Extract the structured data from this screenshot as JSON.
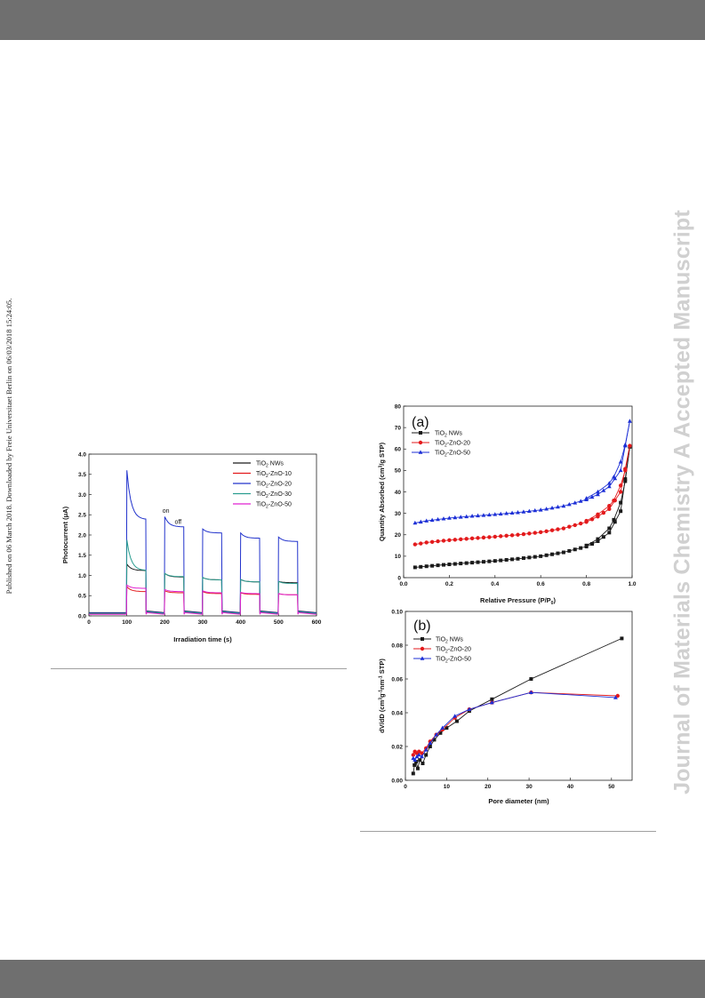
{
  "page": {
    "left_margin_note": "Published on 06 March 2018. Downloaded by Freie Universitaet Berlin on 06/03/2018 15:24:05.",
    "right_margin_watermark": "Journal of Materials Chemistry A Accepted Manuscript",
    "colors": {
      "header_bar": "#6f6f6f",
      "watermark": "#d0d0d0"
    }
  },
  "chart_data": [
    {
      "type": "line",
      "xlabel": "Irradiation time (s)",
      "ylabel": "Photocurrent (μA)",
      "xlim": [
        0,
        600
      ],
      "ylim": [
        0,
        4.0
      ],
      "xticks": [
        "0",
        "100",
        "200",
        "300",
        "400",
        "500",
        "600"
      ],
      "yticks": [
        "0.0",
        "0.5",
        "1.0",
        "1.5",
        "2.0",
        "2.5",
        "3.0",
        "3.5",
        "4.0"
      ],
      "annotations": [
        "on",
        "off"
      ],
      "legend_position": "top-right",
      "grid": false,
      "series": [
        {
          "name": "TiO2 NWs",
          "label_main": "TiO",
          "label_sub": "2",
          "label_tail": " NWs",
          "color": "#1a1a1a",
          "base": 0.08,
          "peaks": [
            1.28,
            1.05,
            0.95,
            0.9,
            0.85
          ],
          "plateaus": [
            1.12,
            0.96,
            0.89,
            0.84,
            0.82
          ]
        },
        {
          "name": "TiO2-ZnO-10",
          "label_main": "TiO",
          "label_sub": "2",
          "label_tail": "-ZnO-10",
          "color": "#e31a1c",
          "base": 0.05,
          "peaks": [
            0.72,
            0.62,
            0.6,
            0.57,
            0.55
          ],
          "plateaus": [
            0.6,
            0.57,
            0.55,
            0.53,
            0.52
          ]
        },
        {
          "name": "TiO2-ZnO-20",
          "label_main": "TiO",
          "label_sub": "2",
          "label_tail": "-ZnO-20",
          "color": "#2233cc",
          "base": 0.07,
          "peaks": [
            3.6,
            2.45,
            2.15,
            2.05,
            1.95
          ],
          "plateaus": [
            2.38,
            2.2,
            2.05,
            1.92,
            1.84
          ]
        },
        {
          "name": "TiO2-ZnO-30",
          "label_main": "TiO",
          "label_sub": "2",
          "label_tail": "-ZnO-30",
          "color": "#2a9d8f",
          "base": 0.06,
          "peaks": [
            1.88,
            1.05,
            0.95,
            0.9,
            0.85
          ],
          "plateaus": [
            1.12,
            0.97,
            0.89,
            0.84,
            0.8
          ]
        },
        {
          "name": "TiO2-ZnO-50",
          "label_main": "TiO",
          "label_sub": "2",
          "label_tail": "-ZnO-50",
          "color": "#e020d0",
          "base": 0.04,
          "peaks": [
            0.76,
            0.65,
            0.62,
            0.58,
            0.55
          ],
          "plateaus": [
            0.68,
            0.6,
            0.57,
            0.55,
            0.52
          ]
        }
      ]
    },
    {
      "type": "line",
      "panel_label": "(a)",
      "xlabel": "Relative Pressure (P/P0)",
      "xlabel_main": "Relative Pressure (P/P",
      "xlabel_sub": "0",
      "xlabel_tail": ")",
      "ylabel": "Quantity Absorbed (cm3/g STP)",
      "ylabel_a": "Quantity Absorbed (cm",
      "ylabel_sup": "3",
      "ylabel_b": "/g STP)",
      "xlim": [
        0,
        1.0
      ],
      "ylim": [
        0,
        80
      ],
      "xticks": [
        "0.0",
        "0.2",
        "0.4",
        "0.6",
        "0.8",
        "1.0"
      ],
      "yticks": [
        "0",
        "10",
        "20",
        "30",
        "40",
        "50",
        "60",
        "70",
        "80"
      ],
      "legend_position": "top-left",
      "series": [
        {
          "name": "TiO2 NWs",
          "label_main": "TiO",
          "label_sub": "2",
          "label_tail": " NWs",
          "color": "#1a1a1a",
          "marker": "square",
          "adsorption": [
            [
              0.05,
              4.8
            ],
            [
              0.1,
              5.3
            ],
            [
              0.2,
              6.2
            ],
            [
              0.3,
              7.0
            ],
            [
              0.4,
              7.8
            ],
            [
              0.5,
              8.8
            ],
            [
              0.6,
              10.0
            ],
            [
              0.7,
              11.8
            ],
            [
              0.8,
              14.5
            ],
            [
              0.85,
              17.0
            ],
            [
              0.9,
              21.0
            ],
            [
              0.95,
              31.0
            ],
            [
              0.99,
              61.0
            ]
          ],
          "desorption": [
            [
              0.99,
              61.0
            ],
            [
              0.97,
              45.0
            ],
            [
              0.95,
              35.0
            ],
            [
              0.92,
              27.0
            ],
            [
              0.9,
              23.0
            ],
            [
              0.85,
              18.0
            ],
            [
              0.8,
              15.0
            ]
          ]
        },
        {
          "name": "TiO2-ZnO-20",
          "label_main": "TiO",
          "label_sub": "2",
          "label_tail": "-ZnO-20",
          "color": "#e31a1c",
          "marker": "circle",
          "adsorption": [
            [
              0.05,
              15.5
            ],
            [
              0.1,
              16.4
            ],
            [
              0.2,
              17.5
            ],
            [
              0.3,
              18.3
            ],
            [
              0.4,
              19.1
            ],
            [
              0.5,
              20.0
            ],
            [
              0.6,
              21.2
            ],
            [
              0.7,
              23.0
            ],
            [
              0.8,
              26.0
            ],
            [
              0.85,
              28.5
            ],
            [
              0.9,
              32.0
            ],
            [
              0.95,
              40.0
            ],
            [
              0.99,
              61.5
            ]
          ],
          "desorption": [
            [
              0.99,
              61.5
            ],
            [
              0.97,
              50.0
            ],
            [
              0.95,
              43.0
            ],
            [
              0.92,
              36.0
            ],
            [
              0.9,
              33.5
            ],
            [
              0.85,
              29.5
            ],
            [
              0.8,
              26.5
            ]
          ]
        },
        {
          "name": "TiO2-ZnO-50",
          "label_main": "TiO",
          "label_sub": "2",
          "label_tail": "-ZnO-50",
          "color": "#1c2fd6",
          "marker": "triangle",
          "adsorption": [
            [
              0.05,
              25.5
            ],
            [
              0.1,
              26.5
            ],
            [
              0.2,
              27.8
            ],
            [
              0.3,
              28.7
            ],
            [
              0.4,
              29.5
            ],
            [
              0.5,
              30.4
            ],
            [
              0.6,
              31.6
            ],
            [
              0.7,
              33.4
            ],
            [
              0.8,
              36.4
            ],
            [
              0.85,
              38.8
            ],
            [
              0.9,
              42.5
            ],
            [
              0.95,
              50.0
            ],
            [
              0.99,
              73.0
            ]
          ],
          "desorption": [
            [
              0.99,
              73.0
            ],
            [
              0.97,
              62.0
            ],
            [
              0.95,
              54.0
            ],
            [
              0.92,
              47.0
            ],
            [
              0.9,
              44.0
            ],
            [
              0.85,
              40.0
            ],
            [
              0.8,
              37.0
            ]
          ]
        }
      ]
    },
    {
      "type": "line",
      "panel_label": "(b)",
      "xlabel": "Pore diameter (nm)",
      "ylabel": "dV/dD (cm3g-1nm-1 STP)",
      "ylabel_parts": [
        "dV/dD (cm",
        "3",
        "g",
        "-1",
        "nm",
        "-1",
        " STP)"
      ],
      "xlim": [
        0,
        55
      ],
      "ylim": [
        0,
        0.1
      ],
      "xticks": [
        "0",
        "10",
        "20",
        "30",
        "40",
        "50"
      ],
      "yticks": [
        "0.00",
        "0.02",
        "0.04",
        "0.06",
        "0.08",
        "0.10"
      ],
      "legend_position": "top-left",
      "series": [
        {
          "name": "TiO2 NWs",
          "label_main": "TiO",
          "label_sub": "2",
          "label_tail": " NWs",
          "color": "#1a1a1a",
          "marker": "square",
          "points": [
            [
              1.9,
              0.004
            ],
            [
              2.2,
              0.009
            ],
            [
              2.6,
              0.011
            ],
            [
              3.0,
              0.007
            ],
            [
              3.5,
              0.012
            ],
            [
              4.2,
              0.01
            ],
            [
              5.0,
              0.015
            ],
            [
              6.0,
              0.02
            ],
            [
              7.0,
              0.024
            ],
            [
              8.5,
              0.028
            ],
            [
              10.0,
              0.031
            ],
            [
              12.5,
              0.035
            ],
            [
              15.5,
              0.041
            ],
            [
              21.0,
              0.048
            ],
            [
              30.5,
              0.06
            ],
            [
              52.5,
              0.084
            ]
          ]
        },
        {
          "name": "TiO2-ZnO-20",
          "label_main": "TiO",
          "label_sub": "2",
          "label_tail": "-ZnO-20",
          "color": "#e31a1c",
          "marker": "circle",
          "points": [
            [
              1.9,
              0.015
            ],
            [
              2.3,
              0.017
            ],
            [
              2.8,
              0.016
            ],
            [
              3.3,
              0.017
            ],
            [
              4.0,
              0.016
            ],
            [
              5.0,
              0.019
            ],
            [
              6.0,
              0.023
            ],
            [
              7.5,
              0.027
            ],
            [
              9.0,
              0.03
            ],
            [
              12.0,
              0.037
            ],
            [
              15.5,
              0.042
            ],
            [
              21.0,
              0.046
            ],
            [
              30.5,
              0.052
            ],
            [
              51.5,
              0.05
            ]
          ]
        },
        {
          "name": "TiO2-ZnO-50",
          "label_main": "TiO",
          "label_sub": "2",
          "label_tail": "-ZnO-50",
          "color": "#1c2fd6",
          "marker": "triangle",
          "points": [
            [
              1.9,
              0.013
            ],
            [
              2.3,
              0.012
            ],
            [
              2.8,
              0.014
            ],
            [
              3.3,
              0.015
            ],
            [
              4.0,
              0.014
            ],
            [
              5.0,
              0.018
            ],
            [
              6.0,
              0.022
            ],
            [
              7.5,
              0.027
            ],
            [
              9.0,
              0.031
            ],
            [
              12.0,
              0.038
            ],
            [
              15.5,
              0.042
            ],
            [
              21.0,
              0.046
            ],
            [
              30.5,
              0.052
            ],
            [
              51.0,
              0.049
            ]
          ]
        }
      ]
    }
  ]
}
